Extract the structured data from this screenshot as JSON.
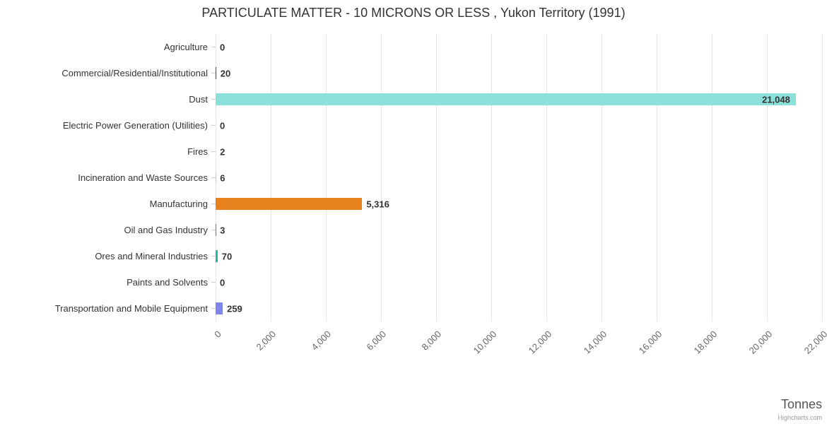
{
  "chart_data": {
    "type": "bar",
    "title": "PARTICULATE MATTER - 10 MICRONS OR LESS , Yukon Territory (1991)",
    "xlabel": "Tonnes",
    "credit": "Highcharts.com",
    "categories": [
      "Agriculture",
      "Commercial/Residential/Institutional",
      "Dust",
      "Electric Power Generation (Utilities)",
      "Fires",
      "Incineration and Waste Sources",
      "Manufacturing",
      "Oil and Gas Industry",
      "Ores and Mineral Industries",
      "Paints and Solvents",
      "Transportation and Mobile Equipment"
    ],
    "values": [
      0,
      20,
      21048,
      0,
      2,
      6,
      5316,
      3,
      70,
      0,
      259
    ],
    "value_labels": [
      "0",
      "20",
      "21,048",
      "0",
      "2",
      "6",
      "5,316",
      "3",
      "70",
      "0",
      "259"
    ],
    "colors": [
      "#7cb5ec",
      "#434348",
      "#8ce0da",
      "#f7a35c",
      "#f15c80",
      "#e4d354",
      "#e8821e",
      "#2b908f",
      "#2bb3a3",
      "#f45b5b",
      "#8085e9"
    ],
    "xlim": [
      0,
      22000
    ],
    "xtick_labels": [
      "0",
      "2,000",
      "4,000",
      "6,000",
      "8,000",
      "10,000",
      "12,000",
      "14,000",
      "16,000",
      "18,000",
      "20,000",
      "22,000"
    ],
    "grid": true,
    "legend": false,
    "grid_color": "#e6e6e6",
    "axis_line_color": "#ccd6eb"
  }
}
